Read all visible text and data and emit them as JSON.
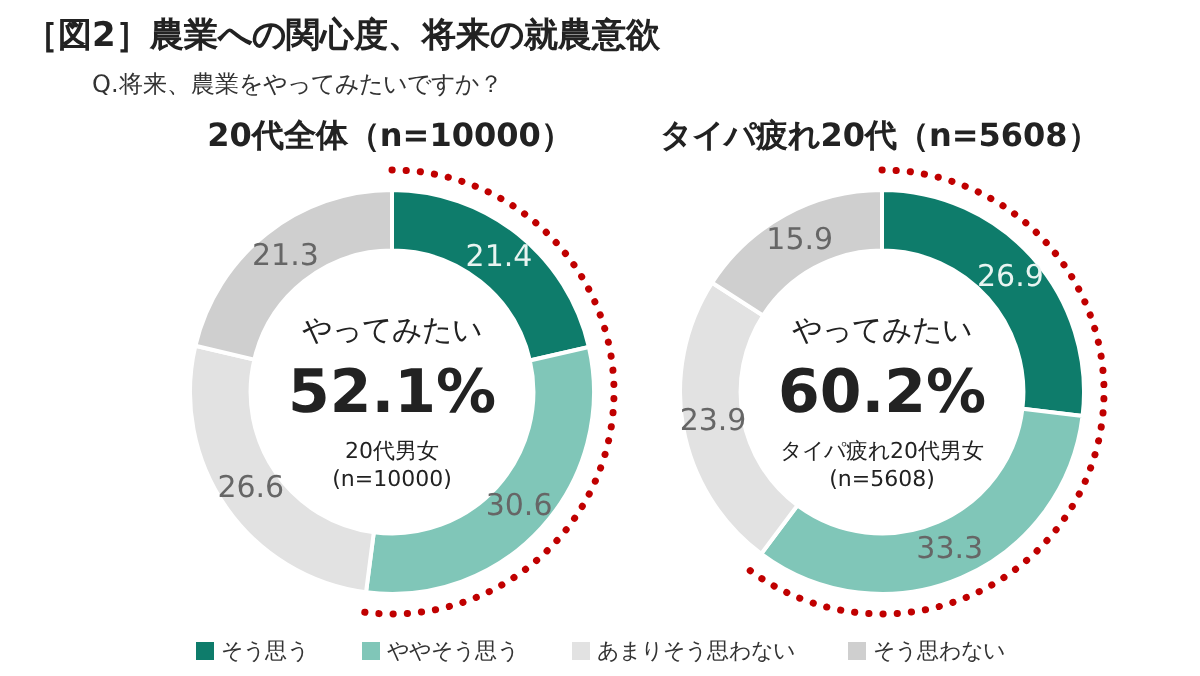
{
  "chart_data": [
    {
      "type": "donut",
      "title": "20代全体（n=10000）",
      "annotations": [
        "［図2］農業への関心度、将来の就農意欲",
        "Q.将来、農業をやってみたいですか？",
        "やってみたい",
        "52.1%",
        "20代男女",
        "(n=10000)"
      ],
      "categories": [
        "そう思う",
        "ややそう思う",
        "あまりそう思わない",
        "そう思わない"
      ],
      "values": [
        21.4,
        30.6,
        26.6,
        21.3
      ],
      "colors": [
        "#0e7c6b",
        "#80c6b8",
        "#e2e2e2",
        "#cfcfcf"
      ],
      "data_labels": true,
      "legend": "bottom"
    },
    {
      "type": "donut",
      "title": "タイパ疲れ20代（n=5608）",
      "annotations": [
        "やってみたい",
        "60.2%",
        "タイパ疲れ20代男女",
        "(n=5608)"
      ],
      "categories": [
        null,
        null,
        null,
        null
      ],
      "values": [
        26.9,
        33.3,
        23.9,
        15.9
      ],
      "colors": [
        "#0e7c6b",
        "#80c6b8",
        "#e2e2e2",
        "#cfcfcf"
      ],
      "data_labels": true
    }
  ]
}
